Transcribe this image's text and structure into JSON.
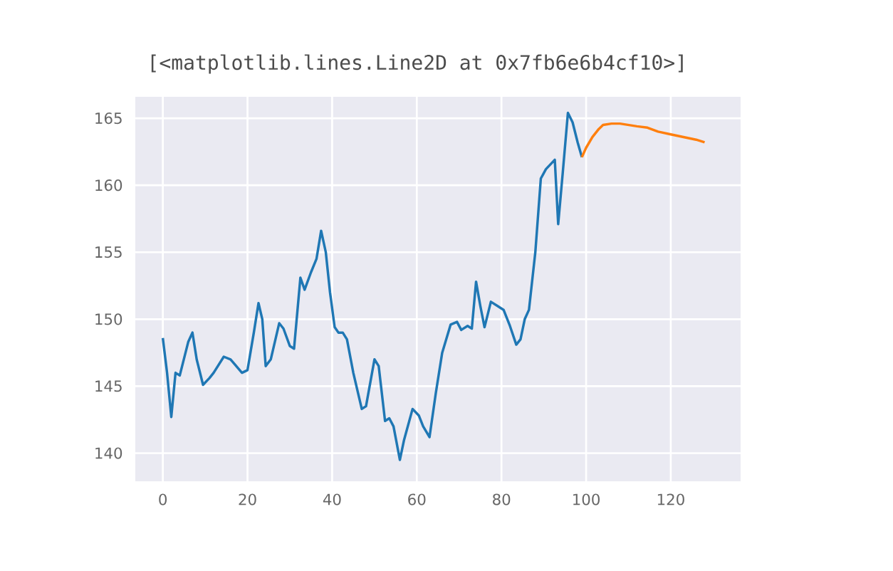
{
  "chart_data": {
    "type": "line",
    "annotations": [
      "[<matplotlib.lines.Line2D at 0x7fb6e6b4cf10>]"
    ],
    "series": [
      {
        "color": "#1f77b4",
        "x": [
          0,
          1,
          2,
          3,
          4,
          6,
          7,
          8,
          9.5,
          11,
          12,
          14.4,
          16,
          18.7,
          20,
          21.5,
          22.6,
          23.5,
          24.3,
          25.5,
          27.5,
          28.5,
          30,
          31,
          32.5,
          33.5,
          35,
          36.3,
          37.4,
          38.5,
          39.5,
          40.6,
          41.5,
          42.5,
          43.5,
          45,
          47,
          48,
          50,
          51,
          52.5,
          53.5,
          54.5,
          56,
          57,
          59,
          60.5,
          61.5,
          63,
          64.5,
          66,
          68,
          69.5,
          70.5,
          72,
          73,
          74,
          75,
          76,
          77.5,
          79,
          80.5,
          82,
          83.5,
          84.5,
          85.5,
          86.5,
          88,
          89.3,
          90.5,
          92.6,
          93.4,
          94.5,
          95.7,
          96.8,
          98,
          99
        ],
        "values": [
          148.6,
          146,
          142.7,
          146,
          145.8,
          148.3,
          149,
          147,
          145.1,
          145.6,
          146,
          147.2,
          147,
          146,
          146.2,
          149,
          151.2,
          150,
          146.5,
          147,
          149.7,
          149.3,
          148,
          147.8,
          153.1,
          152.2,
          153.5,
          154.5,
          156.6,
          155,
          152,
          149.4,
          149,
          149,
          148.5,
          146,
          143.3,
          143.5,
          147,
          146.5,
          142.4,
          142.6,
          142,
          139.5,
          141,
          143.3,
          142.8,
          142,
          141.2,
          144.5,
          147.5,
          149.6,
          149.8,
          149.2,
          149.5,
          149.3,
          152.8,
          151,
          149.4,
          151.3,
          151,
          150.7,
          149.5,
          148.1,
          148.5,
          150,
          150.7,
          155,
          160.5,
          161.2,
          161.9,
          157.1,
          161,
          165.4,
          164.7,
          163.2,
          162.1
        ]
      },
      {
        "color": "#ff7f0e",
        "x": [
          99,
          100,
          101.5,
          103,
          104,
          106,
          108,
          110,
          112,
          114.5,
          117,
          120,
          123,
          126,
          128
        ],
        "values": [
          162.1,
          162.8,
          163.6,
          164.2,
          164.5,
          164.6,
          164.6,
          164.5,
          164.4,
          164.3,
          164,
          163.8,
          163.6,
          163.4,
          163.2
        ]
      }
    ],
    "xlim": [
      -6.5,
      136.5
    ],
    "ylim": [
      137.9,
      166.6
    ],
    "xticks": [
      0,
      20,
      40,
      60,
      80,
      100,
      120
    ],
    "yticks": [
      140,
      145,
      150,
      155,
      160,
      165
    ],
    "grid": true
  }
}
